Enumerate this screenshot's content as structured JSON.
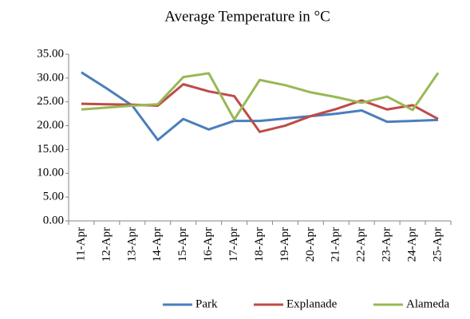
{
  "chart_data": {
    "type": "line",
    "title": "Average Temperature in °C",
    "categories": [
      "11-Apr",
      "12-Apr",
      "13-Apr",
      "14-Apr",
      "15-Apr",
      "16-Apr",
      "17-Apr",
      "18-Apr",
      "19-Apr",
      "20-Apr",
      "21-Apr",
      "22-Apr",
      "23-Apr",
      "24-Apr",
      "25-Apr"
    ],
    "series": [
      {
        "name": "Park",
        "color": "#4a7ebb",
        "values": [
          31.2,
          27.8,
          24.2,
          17.0,
          21.4,
          19.2,
          21.0,
          21.0,
          21.5,
          22.0,
          22.5,
          23.2,
          20.8,
          21.0,
          21.2
        ]
      },
      {
        "name": "Explanade",
        "color": "#be4b48",
        "values": [
          24.6,
          24.5,
          24.4,
          24.2,
          28.7,
          27.2,
          26.2,
          18.7,
          20.0,
          22.0,
          23.5,
          25.3,
          23.4,
          24.3,
          21.4
        ]
      },
      {
        "name": "Alameda",
        "color": "#98b954",
        "values": [
          23.4,
          23.8,
          24.2,
          24.5,
          30.2,
          31.0,
          21.3,
          29.6,
          28.5,
          27.0,
          26.0,
          24.8,
          26.1,
          23.3,
          31.1
        ]
      }
    ],
    "ylim": [
      0,
      35
    ],
    "yticks": [
      {
        "value": 0,
        "label": "0.00"
      },
      {
        "value": 5,
        "label": "5.00"
      },
      {
        "value": 10,
        "label": "10.00"
      },
      {
        "value": 15,
        "label": "15.00"
      },
      {
        "value": 20,
        "label": "20.00"
      },
      {
        "value": 25,
        "label": "25.00"
      },
      {
        "value": 30,
        "label": "30.00"
      },
      {
        "value": 35,
        "label": "35.00"
      }
    ],
    "grid": false,
    "legend": "bottom"
  }
}
